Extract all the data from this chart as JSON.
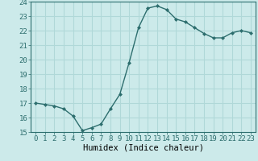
{
  "x": [
    0,
    1,
    2,
    3,
    4,
    5,
    6,
    7,
    8,
    9,
    10,
    11,
    12,
    13,
    14,
    15,
    16,
    17,
    18,
    19,
    20,
    21,
    22,
    23
  ],
  "y": [
    17.0,
    16.9,
    16.8,
    16.6,
    16.1,
    15.1,
    15.3,
    15.55,
    16.6,
    17.6,
    19.8,
    22.2,
    23.55,
    23.7,
    23.45,
    22.8,
    22.6,
    22.2,
    21.8,
    21.5,
    21.5,
    21.85,
    22.0,
    21.85
  ],
  "line_color": "#2d6e6e",
  "marker": "D",
  "marker_size": 2,
  "bg_color": "#cceaea",
  "grid_color": "#b0d8d8",
  "xlabel": "Humidex (Indice chaleur)",
  "ylim": [
    15,
    24
  ],
  "xlim": [
    -0.5,
    23.5
  ],
  "yticks": [
    15,
    16,
    17,
    18,
    19,
    20,
    21,
    22,
    23,
    24
  ],
  "xticks": [
    0,
    1,
    2,
    3,
    4,
    5,
    6,
    7,
    8,
    9,
    10,
    11,
    12,
    13,
    14,
    15,
    16,
    17,
    18,
    19,
    20,
    21,
    22,
    23
  ],
  "xlabel_fontsize": 7.5,
  "tick_fontsize": 6.5,
  "spine_color": "#2d6e6e",
  "linewidth": 1.0
}
